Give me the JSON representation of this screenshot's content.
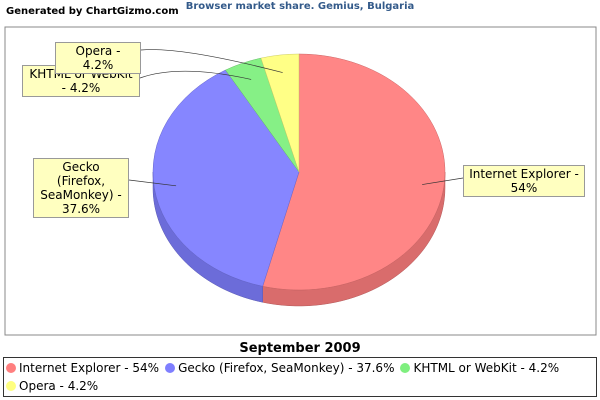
{
  "chart_data": {
    "type": "pie",
    "credit": "Generated by ChartGizmo.com",
    "title": "Browser market share. Gemius, Bulgaria",
    "subtitle": "September 2009",
    "categories": [
      "Internet Explorer",
      "Gecko (Firefox, SeaMonkey)",
      "KHTML or WebKit",
      "Opera"
    ],
    "values": [
      54,
      37.6,
      4.2,
      4.2
    ],
    "value_labels": [
      "Internet Explorer - 54%",
      "Gecko (Firefox, SeaMonkey) - 37.6%",
      "KHTML or WebKit - 4.2%",
      "Opera - 4.2%"
    ],
    "colors": [
      "#ff7f7f",
      "#7f7fff",
      "#7fef7f",
      "#ffff7f"
    ]
  }
}
